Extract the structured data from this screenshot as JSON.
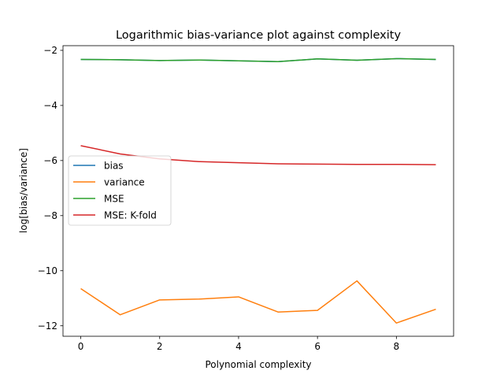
{
  "chart_data": {
    "type": "line",
    "title": "Logarithmic bias-variance plot against complexity",
    "xlabel": "Polynomial complexity",
    "ylabel": "log[bias/variance]",
    "xlim": [
      -0.45,
      9.45
    ],
    "ylim": [
      -12.38,
      -1.83
    ],
    "xticks": [
      0,
      2,
      4,
      6,
      8
    ],
    "yticks": [
      -12,
      -10,
      -8,
      -6,
      -4,
      -2
    ],
    "x": [
      0,
      1,
      2,
      3,
      4,
      5,
      6,
      7,
      8,
      9
    ],
    "legend_position": "center-left",
    "grid": false,
    "series": [
      {
        "name": "bias",
        "color": "#1f77b4",
        "values": [
          -2.33,
          -2.34,
          -2.37,
          -2.35,
          -2.38,
          -2.41,
          -2.31,
          -2.36,
          -2.3,
          -2.33
        ]
      },
      {
        "name": "variance",
        "color": "#ff7f0e",
        "values": [
          -10.65,
          -11.6,
          -11.06,
          -11.03,
          -10.95,
          -11.5,
          -11.44,
          -10.37,
          -11.9,
          -11.4
        ]
      },
      {
        "name": "MSE",
        "color": "#2ca02c",
        "values": [
          -2.33,
          -2.34,
          -2.37,
          -2.35,
          -2.38,
          -2.41,
          -2.31,
          -2.36,
          -2.3,
          -2.33
        ]
      },
      {
        "name": "MSE: K-fold",
        "color": "#d62728",
        "values": [
          -5.46,
          -5.76,
          -5.94,
          -6.04,
          -6.08,
          -6.12,
          -6.13,
          -6.14,
          -6.14,
          -6.15
        ]
      }
    ]
  }
}
